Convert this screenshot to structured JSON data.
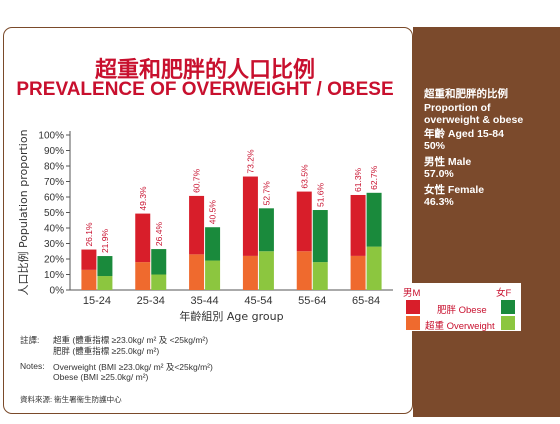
{
  "title_cn": "超重和肥胖的人口比例",
  "title_en": "PREVALENCE OF OVERWEIGHT / OBESE",
  "side_panel": {
    "line1": "超重和肥胖的比例",
    "line2": "Proportion of",
    "line3": "overweight & obese",
    "age_line": "年齡 Aged 15-84",
    "age_value": "50%",
    "male_line": "男性 Male",
    "male_value": "57.0%",
    "female_line": "女性 Female",
    "female_value": "46.3%"
  },
  "legend": {
    "male": "男M",
    "female": "女F",
    "obese": "肥胖 Obese",
    "overweight": "超重 Overweight"
  },
  "notes": {
    "label_cn": "註譯:",
    "cn_line1": "超重 (體重指標 ≥23.0kg/ m² 及 <25kg/m²)",
    "cn_line2": "肥胖 (體重指標 ≥25.0kg/ m²)",
    "label_en": "Notes:",
    "en_line1": "Overweight (BMI ≥23.0kg/ m² 及<25kg/m²)",
    "en_line2": "Obese (BMI ≥25.0kg/ m²)",
    "source": "資料來源: 衞生署衞生防護中心"
  },
  "colors": {
    "male_obese": "#d81e2a",
    "male_overweight": "#ef6a2e",
    "female_obese": "#1a8a3c",
    "female_overweight": "#8cc63f",
    "title": "#c8102e",
    "brown": "#7b4a2c"
  },
  "chart_data": {
    "type": "bar",
    "stacked": true,
    "categories": [
      "15-24",
      "25-34",
      "35-44",
      "45-54",
      "55-64",
      "65-84"
    ],
    "xlabel": "年齡組別 Age group",
    "ylabel": "人口比例 Population proportion",
    "ylim": [
      0,
      100
    ],
    "yticks": [
      "0%",
      "10%",
      "20%",
      "30%",
      "40%",
      "50%",
      "60%",
      "70%",
      "80%",
      "90%",
      "100%"
    ],
    "grid": false,
    "legend_position": "right",
    "male": {
      "name": "男M",
      "overweight": [
        13,
        18,
        23,
        22,
        25,
        22
      ],
      "obese": [
        13.1,
        31.3,
        37.7,
        51.2,
        38.5,
        39.3
      ],
      "total_labels": [
        "26.1%",
        "49.3%",
        "60.7%",
        "73.2%",
        "63.5%",
        "61.3%"
      ]
    },
    "female": {
      "name": "女F",
      "overweight": [
        9,
        10,
        19,
        25,
        18,
        28
      ],
      "obese": [
        12.9,
        16.4,
        21.5,
        27.7,
        33.6,
        34.7
      ],
      "total_labels": [
        "21.9%",
        "26.4%",
        "40.5%",
        "52.7%",
        "51.6%",
        "62.7%"
      ]
    }
  }
}
